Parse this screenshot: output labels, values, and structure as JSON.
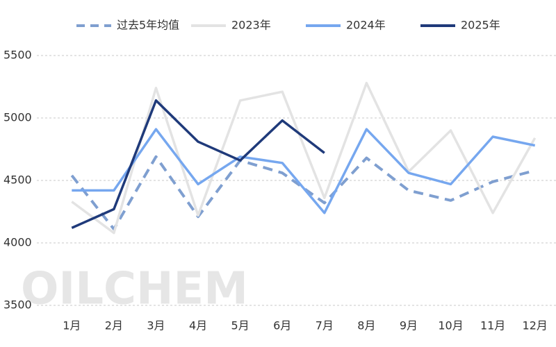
{
  "chart_data": {
    "type": "line",
    "watermark": "OILCHEM",
    "categories": [
      "1月",
      "2月",
      "3月",
      "4月",
      "5月",
      "6月",
      "7月",
      "8月",
      "9月",
      "10月",
      "11月",
      "12月"
    ],
    "series": [
      {
        "name": "过去5年均值",
        "color": "#7f9fd0",
        "style": "dashed",
        "values": [
          4540,
          4110,
          4690,
          4210,
          4660,
          4560,
          4320,
          4680,
          4420,
          4340,
          4490,
          4580
        ]
      },
      {
        "name": "2023年",
        "color": "#e3e3e3",
        "style": "solid",
        "values": [
          4330,
          4080,
          5240,
          4220,
          5140,
          5210,
          4360,
          5280,
          4570,
          4900,
          4240,
          4840
        ]
      },
      {
        "name": "2024年",
        "color": "#76a7ef",
        "style": "solid",
        "values": [
          4420,
          4420,
          4910,
          4470,
          4690,
          4640,
          4240,
          4910,
          4560,
          4470,
          4850,
          4780
        ]
      },
      {
        "name": "2025年",
        "color": "#1f3a7a",
        "style": "solid",
        "values": [
          4120,
          4270,
          5140,
          4810,
          4660,
          4980,
          4720,
          null,
          null,
          null,
          null,
          null
        ]
      }
    ],
    "ylim": [
      3500,
      5500
    ],
    "yticks": [
      3500,
      4000,
      4500,
      5000,
      5500
    ],
    "grid": true
  }
}
